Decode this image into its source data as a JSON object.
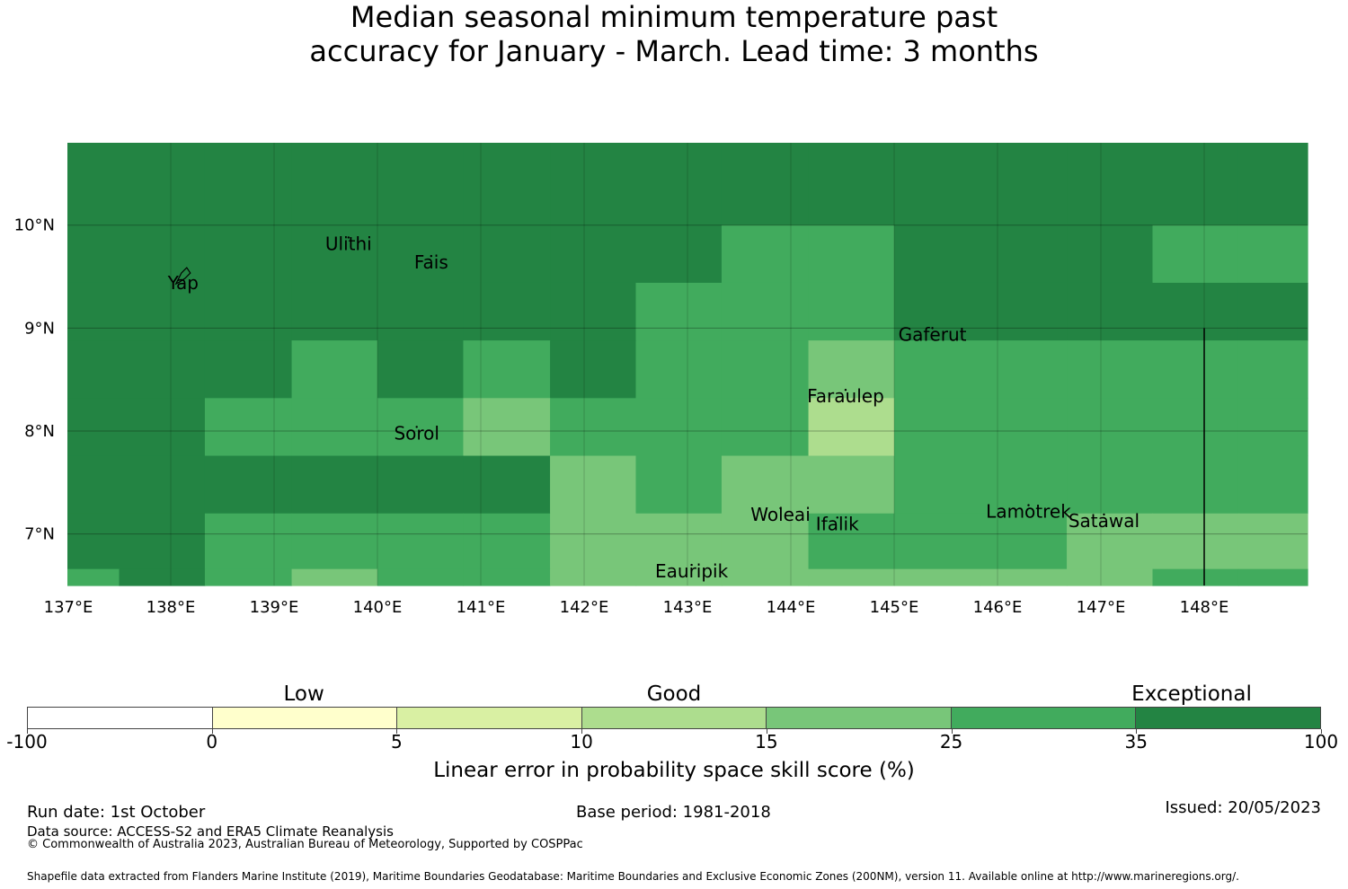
{
  "title": {
    "line1": "Median seasonal minimum temperature past",
    "line2": "accuracy for January - March. Lead time: 3 months"
  },
  "map": {
    "lon_min": 137.0,
    "lon_max": 149.0,
    "lat_min": 6.5,
    "lat_max": 10.8,
    "lon_ticks": [
      {
        "value": 137,
        "label": "137°E"
      },
      {
        "value": 138,
        "label": "138°E"
      },
      {
        "value": 139,
        "label": "139°E"
      },
      {
        "value": 140,
        "label": "140°E"
      },
      {
        "value": 141,
        "label": "141°E"
      },
      {
        "value": 142,
        "label": "142°E"
      },
      {
        "value": 143,
        "label": "143°E"
      },
      {
        "value": 144,
        "label": "144°E"
      },
      {
        "value": 145,
        "label": "145°E"
      },
      {
        "value": 146,
        "label": "146°E"
      },
      {
        "value": 147,
        "label": "147°E"
      },
      {
        "value": 148,
        "label": "148°E"
      }
    ],
    "lat_ticks": [
      {
        "value": 10,
        "label": "10°N"
      },
      {
        "value": 9,
        "label": "9°N"
      },
      {
        "value": 8,
        "label": "8°N"
      },
      {
        "value": 7,
        "label": "7°N"
      }
    ],
    "grid_columns_lon": [
      137.0,
      137.5,
      138.33,
      139.17,
      140.0,
      140.83,
      141.67,
      142.5,
      143.33,
      144.17,
      145.0,
      145.83,
      146.67,
      147.5,
      148.33,
      149.0
    ],
    "grid_rows_lat": [
      10.8,
      10.0,
      9.44,
      8.88,
      8.32,
      7.76,
      7.2,
      6.66,
      6.5
    ],
    "skill_classes": [
      "6666666666666666",
      "6666666655666555",
      "6666666555666666",
      "6665656554555555",
      "6655545553555555",
      "6666664544555555",
      "6655554445554446",
      "5654554444444556"
    ],
    "class_colors": {
      "3": "#addd8e",
      "4": "#78c679",
      "5": "#41ab5d",
      "6": "#238443"
    },
    "boundary_line": {
      "lon": 148.0,
      "lat_top": 9.0,
      "lat_bottom": 6.5
    },
    "places": [
      {
        "name": "Yap",
        "lon": 138.12,
        "lat": 9.5
      },
      {
        "name": "Ulithi",
        "lon": 139.72,
        "lat": 9.88
      },
      {
        "name": "Fais",
        "lon": 140.52,
        "lat": 9.7
      },
      {
        "name": "Gaferut",
        "lon": 145.37,
        "lat": 9.0
      },
      {
        "name": "Faraulep",
        "lon": 144.53,
        "lat": 8.4
      },
      {
        "name": "Sorol",
        "lon": 140.38,
        "lat": 8.04
      },
      {
        "name": "Woleai",
        "lon": 143.9,
        "lat": 7.25
      },
      {
        "name": "Ifalik",
        "lon": 144.45,
        "lat": 7.16
      },
      {
        "name": "Lamotrek",
        "lon": 146.3,
        "lat": 7.28
      },
      {
        "name": "Satawal",
        "lon": 147.03,
        "lat": 7.19
      },
      {
        "name": "Eauripik",
        "lon": 143.04,
        "lat": 6.7
      }
    ]
  },
  "legend": {
    "categories": [
      {
        "label": "Low",
        "at": 0.214
      },
      {
        "label": "Good",
        "at": 0.5
      },
      {
        "label": "Exceptional",
        "at": 0.9
      }
    ],
    "bins": [
      {
        "color": "#ffffff"
      },
      {
        "color": "#ffffcc"
      },
      {
        "color": "#d9f0a3"
      },
      {
        "color": "#addd8e"
      },
      {
        "color": "#78c679"
      },
      {
        "color": "#41ab5d"
      },
      {
        "color": "#238443"
      }
    ],
    "ticks": [
      "-100",
      "0",
      "5",
      "10",
      "15",
      "25",
      "35",
      "100"
    ],
    "label": "Linear error in probability space skill score (%)"
  },
  "footer": {
    "run_date": "Run date: 1st October",
    "base_period": "Base period: 1981-2018",
    "issued": "Issued: 20/05/2023",
    "data_source": "Data source: ACCESS-S2 and ERA5 Climate Reanalysis",
    "copyright": "© Commonwealth of Australia 2023, Australian Bureau of Meteorology, Supported by COSPPac",
    "shapefile": "Shapefile data extracted from Flanders Marine Institute (2019), Maritime Boundaries Geodatabase: Maritime Boundaries and Exclusive Economic Zones (200NM), version 11. Available online at http://www.marineregions.org/."
  }
}
